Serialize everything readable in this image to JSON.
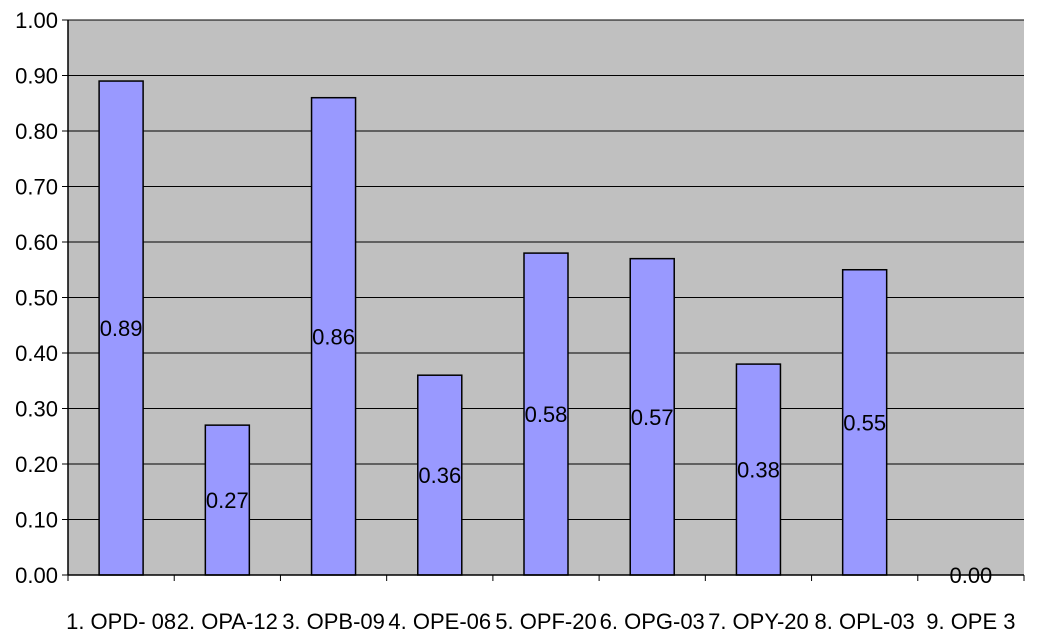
{
  "chart_data": {
    "type": "bar",
    "categories": [
      "1. OPD- 08",
      "2. OPA-12",
      "3. OPB-09",
      "4. OPE-06",
      "5. OPF-20",
      "6. OPG-03",
      "7. OPY-20",
      "8. OPL-03",
      "9. OPE 3"
    ],
    "values": [
      0.89,
      0.27,
      0.86,
      0.36,
      0.58,
      0.57,
      0.38,
      0.55,
      0.0
    ],
    "data_labels": [
      "0.89",
      "0.27",
      "0.86",
      "0.36",
      "0.58",
      "0.57",
      "0.38",
      "0.55",
      "0.00"
    ],
    "yticks": [
      "0.00",
      "0.10",
      "0.20",
      "0.30",
      "0.40",
      "0.50",
      "0.60",
      "0.70",
      "0.80",
      "0.90",
      "1.00"
    ],
    "ylim": [
      0,
      1
    ],
    "title": "",
    "xlabel": "",
    "ylabel": "",
    "grid": true,
    "legend": "none",
    "colors": {
      "plot_background": "#c0c0c0",
      "bar_fill": "#9999ff",
      "bar_stroke": "#000000",
      "gridline": "#000000"
    }
  }
}
